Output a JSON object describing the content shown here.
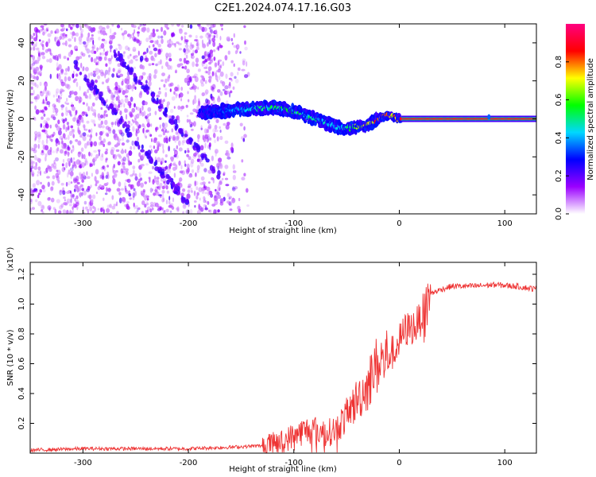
{
  "figure": {
    "title": "C2E1.2024.074.17.16.G03"
  },
  "chart_data": [
    {
      "type": "heatmap",
      "title": "C2E1.2024.074.17.16.G03",
      "xlabel": "Height of straight line (km)",
      "ylabel": "Frequency (Hz)",
      "xlim": [
        -350,
        130
      ],
      "ylim": [
        -50,
        50
      ],
      "xticks": [
        -300,
        -200,
        -100,
        0,
        100
      ],
      "yticks": [
        -40,
        -20,
        0,
        20,
        40
      ],
      "colorbar": {
        "label": "Normalized spectral amplitude",
        "range": [
          0,
          1
        ],
        "ticks": [
          0.0,
          0.2,
          0.4,
          0.6,
          0.8
        ],
        "colormap": [
          "#ffffff",
          "#9b00ff",
          "#0000ff",
          "#00d8ff",
          "#00ff00",
          "#ffff00",
          "#ff0000",
          "#ff0080"
        ]
      },
      "ridge": {
        "x": [
          -190,
          -150,
          -120,
          -100,
          -80,
          -60,
          -50,
          -40,
          -30,
          -20,
          -10,
          0,
          50,
          100,
          130
        ],
        "frequency": [
          3,
          5,
          6,
          4,
          0,
          -4,
          -5,
          -4,
          -3,
          0,
          2,
          0,
          0,
          0,
          0
        ],
        "amplitude": [
          0.25,
          0.45,
          0.55,
          0.55,
          0.5,
          0.45,
          0.5,
          0.7,
          0.8,
          0.85,
          0.85,
          0.9,
          0.9,
          0.9,
          0.9
        ]
      },
      "noise_region": {
        "x": [
          -350,
          -140
        ],
        "frequency": [
          -50,
          50
        ]
      },
      "streak_lines": [
        {
          "x": [
            -310,
            -200
          ],
          "frequency": [
            30,
            -45
          ]
        },
        {
          "x": [
            -270,
            -170
          ],
          "frequency": [
            35,
            -30
          ]
        }
      ],
      "grid": false
    },
    {
      "type": "line",
      "xlabel": "Height of straight line (km)",
      "ylabel": "SNR (10 * v/v)",
      "y_multiplier": "(x10⁴)",
      "xlim": [
        -350,
        130
      ],
      "ylim": [
        0,
        1.28
      ],
      "xticks": [
        -300,
        -200,
        -100,
        0,
        100
      ],
      "yticks": [
        0.2,
        0.4,
        0.6,
        0.8,
        1.0,
        1.2
      ],
      "series": [
        {
          "color": "#ee3333",
          "x": [
            -350,
            -300,
            -250,
            -200,
            -160,
            -130,
            -110,
            -100,
            -90,
            -80,
            -70,
            -60,
            -50,
            -40,
            -30,
            -25,
            -20,
            -15,
            -10,
            -5,
            0,
            5,
            10,
            15,
            20,
            25,
            30,
            40,
            50,
            70,
            90,
            110,
            130
          ],
          "y": [
            0.02,
            0.03,
            0.03,
            0.03,
            0.04,
            0.05,
            0.08,
            0.12,
            0.15,
            0.16,
            0.13,
            0.16,
            0.25,
            0.36,
            0.45,
            0.55,
            0.6,
            0.62,
            0.66,
            0.68,
            0.75,
            0.82,
            0.84,
            0.85,
            0.9,
            1.0,
            1.07,
            1.1,
            1.12,
            1.12,
            1.13,
            1.12,
            1.1
          ]
        }
      ]
    }
  ]
}
